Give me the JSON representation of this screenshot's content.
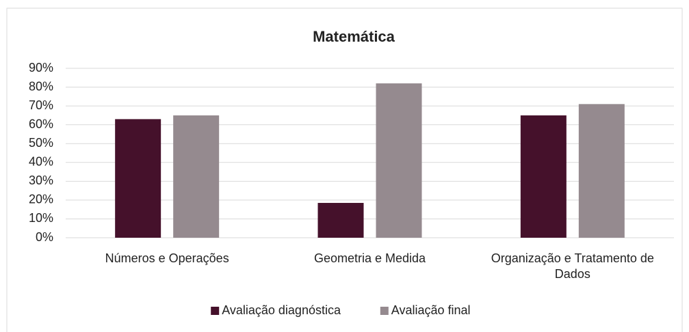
{
  "chart_data": {
    "type": "bar",
    "title": "Matemática",
    "categories": [
      "Números e Operações",
      "Geometria e Medida",
      "Organização e Tratamento de Dados"
    ],
    "series": [
      {
        "name": "Avaliação diagnóstica",
        "color": "#45112b",
        "values": [
          63,
          18.5,
          65
        ]
      },
      {
        "name": "Avaliação final",
        "color": "#958a8f",
        "values": [
          65,
          82,
          71
        ]
      }
    ],
    "ylim": [
      0,
      90
    ],
    "yticks": [
      {
        "value": 0,
        "label": "0%"
      },
      {
        "value": 10,
        "label": "10%"
      },
      {
        "value": 20,
        "label": "20%"
      },
      {
        "value": 30,
        "label": "30%"
      },
      {
        "value": 40,
        "label": "40%"
      },
      {
        "value": 50,
        "label": "50%"
      },
      {
        "value": 60,
        "label": "60%"
      },
      {
        "value": 70,
        "label": "70%"
      },
      {
        "value": 80,
        "label": "80%"
      },
      {
        "value": 90,
        "label": "90%"
      }
    ],
    "grid": true,
    "legend": "bottom"
  }
}
